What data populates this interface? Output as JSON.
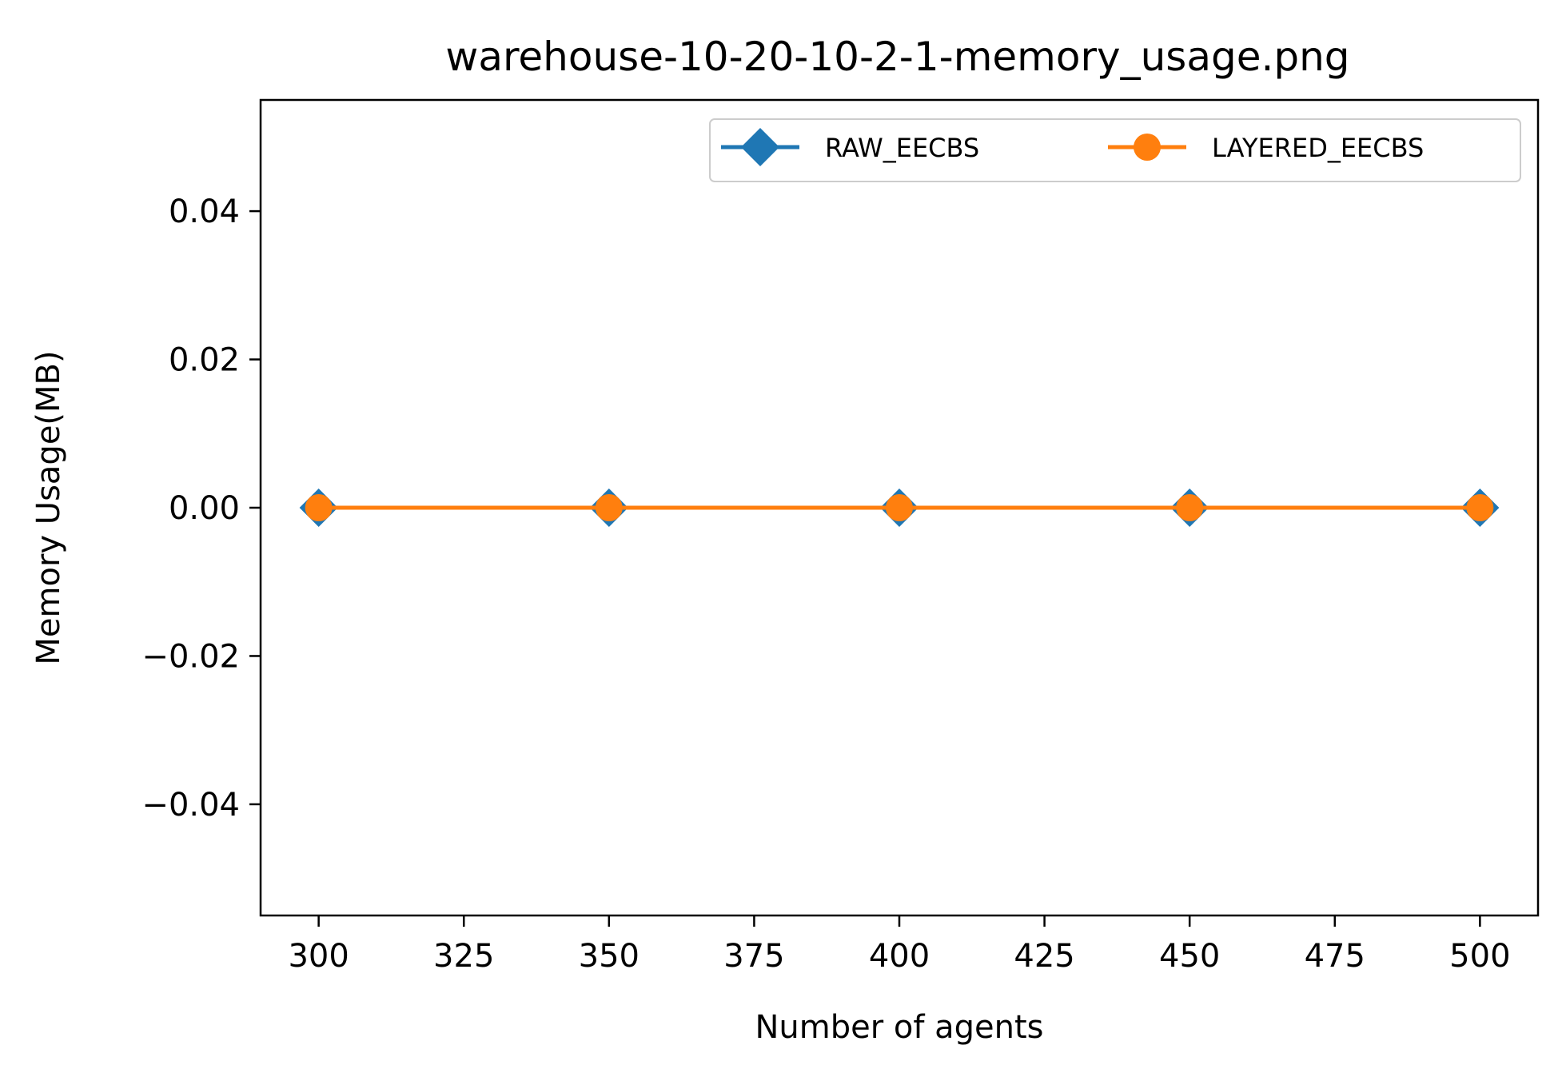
{
  "chart_data": {
    "type": "line",
    "title": "warehouse-10-20-10-2-1-memory_usage.png",
    "xlabel": "Number of agents",
    "ylabel": "Memory Usage(MB)",
    "x": [
      300,
      350,
      400,
      450,
      500
    ],
    "x_ticks": [
      300,
      325,
      350,
      375,
      400,
      425,
      450,
      475,
      500
    ],
    "x_tick_labels": [
      "300",
      "325",
      "350",
      "375",
      "400",
      "425",
      "450",
      "475",
      "500"
    ],
    "y_ticks": [
      -0.04,
      -0.02,
      0.0,
      0.02,
      0.04
    ],
    "y_tick_labels": [
      "−0.04",
      "−0.02",
      "0.00",
      "0.02",
      "0.04"
    ],
    "xlim": [
      290,
      510
    ],
    "ylim": [
      -0.055,
      0.055
    ],
    "grid": false,
    "legend_position": "top-right",
    "series": [
      {
        "name": "RAW_EECBS",
        "values": [
          0,
          0,
          0,
          0,
          0
        ],
        "color": "#1f77b4",
        "marker": "diamond"
      },
      {
        "name": "LAYERED_EECBS",
        "values": [
          0,
          0,
          0,
          0,
          0
        ],
        "color": "#ff7f0e",
        "marker": "circle"
      }
    ]
  }
}
